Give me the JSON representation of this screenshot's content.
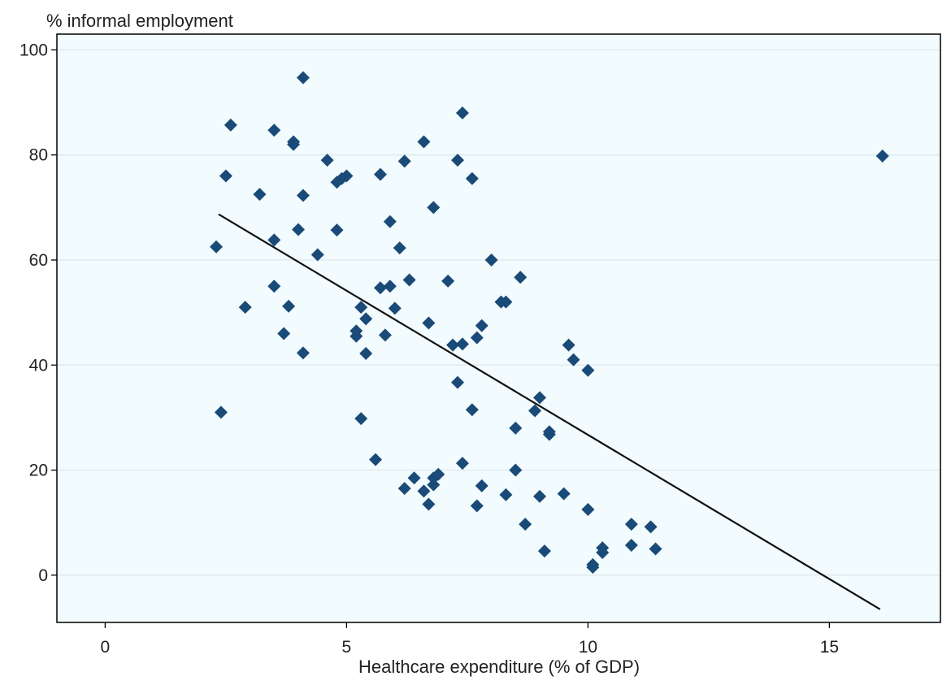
{
  "chart_data": {
    "type": "scatter",
    "title": "",
    "ylabel": "% informal employment",
    "xlabel": "Healthcare expenditure (% of GDP)",
    "xlim": [
      -1,
      17.3
    ],
    "ylim": [
      -9,
      103
    ],
    "x_ticks": [
      0,
      5,
      10,
      15
    ],
    "y_ticks": [
      0,
      20,
      40,
      60,
      80,
      100
    ],
    "x_tick_labels": [
      "0",
      "5",
      "10",
      "15"
    ],
    "y_tick_labels": [
      "0",
      "20",
      "40",
      "60",
      "80",
      "100"
    ],
    "grid": "horizontal",
    "legend": "none",
    "marker": "diamond",
    "colors": {
      "plot_background": "#f2fbfd",
      "marker": "#1a4a78",
      "fit_line": "#111111",
      "grid": "#dde9ee",
      "frame": "#000000"
    },
    "series": [
      {
        "points": [
          [
            2.3,
            62.5
          ],
          [
            2.4,
            31.0
          ],
          [
            2.5,
            76.0
          ],
          [
            2.6,
            85.7
          ],
          [
            2.9,
            51.0
          ],
          [
            3.2,
            72.5
          ],
          [
            3.5,
            84.7
          ],
          [
            3.5,
            63.8
          ],
          [
            3.5,
            55.0
          ],
          [
            3.7,
            46.0
          ],
          [
            3.8,
            51.2
          ],
          [
            3.9,
            82.0
          ],
          [
            3.9,
            82.5
          ],
          [
            4.0,
            65.8
          ],
          [
            4.1,
            94.7
          ],
          [
            4.1,
            72.3
          ],
          [
            4.1,
            42.3
          ],
          [
            4.4,
            61.0
          ],
          [
            4.6,
            79.0
          ],
          [
            4.8,
            65.7
          ],
          [
            4.8,
            74.8
          ],
          [
            4.9,
            75.5
          ],
          [
            5.0,
            76.0
          ],
          [
            5.2,
            46.5
          ],
          [
            5.2,
            45.5
          ],
          [
            5.3,
            29.8
          ],
          [
            5.3,
            51.0
          ],
          [
            5.4,
            48.8
          ],
          [
            5.4,
            42.2
          ],
          [
            5.6,
            22.0
          ],
          [
            5.7,
            76.3
          ],
          [
            5.7,
            54.7
          ],
          [
            5.8,
            45.7
          ],
          [
            5.9,
            67.3
          ],
          [
            5.9,
            55.0
          ],
          [
            6.0,
            50.8
          ],
          [
            6.1,
            62.3
          ],
          [
            6.2,
            78.8
          ],
          [
            6.2,
            16.5
          ],
          [
            6.3,
            56.2
          ],
          [
            6.4,
            18.5
          ],
          [
            6.6,
            82.5
          ],
          [
            6.6,
            16.0
          ],
          [
            6.7,
            48.0
          ],
          [
            6.7,
            13.5
          ],
          [
            6.8,
            70.0
          ],
          [
            6.8,
            18.5
          ],
          [
            6.8,
            17.2
          ],
          [
            6.9,
            19.2
          ],
          [
            7.1,
            56.0
          ],
          [
            7.2,
            43.8
          ],
          [
            7.3,
            79.0
          ],
          [
            7.3,
            36.7
          ],
          [
            7.4,
            88.0
          ],
          [
            7.4,
            44.0
          ],
          [
            7.4,
            21.3
          ],
          [
            7.6,
            75.5
          ],
          [
            7.6,
            31.5
          ],
          [
            7.7,
            45.2
          ],
          [
            7.7,
            13.2
          ],
          [
            7.8,
            17.0
          ],
          [
            7.8,
            47.5
          ],
          [
            8.0,
            60.0
          ],
          [
            8.2,
            52.0
          ],
          [
            8.3,
            52.0
          ],
          [
            8.3,
            15.3
          ],
          [
            8.5,
            20.0
          ],
          [
            8.5,
            28.0
          ],
          [
            8.6,
            56.7
          ],
          [
            8.7,
            9.7
          ],
          [
            8.9,
            31.3
          ],
          [
            9.0,
            33.8
          ],
          [
            9.0,
            15.0
          ],
          [
            9.1,
            4.6
          ],
          [
            9.2,
            27.3
          ],
          [
            9.2,
            26.8
          ],
          [
            9.5,
            15.5
          ],
          [
            9.6,
            43.8
          ],
          [
            9.7,
            41.0
          ],
          [
            10.0,
            12.5
          ],
          [
            10.0,
            39.0
          ],
          [
            10.1,
            1.5
          ],
          [
            10.1,
            2.0
          ],
          [
            10.3,
            4.3
          ],
          [
            10.3,
            5.2
          ],
          [
            10.9,
            5.7
          ],
          [
            10.9,
            9.7
          ],
          [
            11.3,
            9.2
          ],
          [
            11.4,
            5.0
          ],
          [
            16.1,
            79.8
          ]
        ]
      }
    ],
    "fit_line": {
      "x": [
        2.35,
        16.05
      ],
      "y": [
        68.7,
        -6.5
      ]
    }
  }
}
